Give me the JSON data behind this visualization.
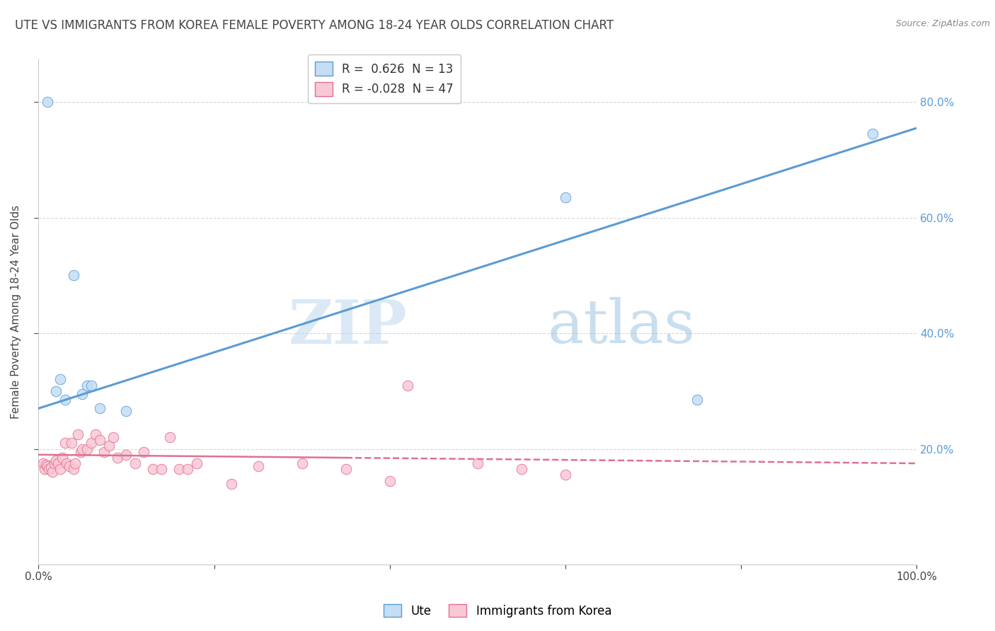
{
  "title": "UTE VS IMMIGRANTS FROM KOREA FEMALE POVERTY AMONG 18-24 YEAR OLDS CORRELATION CHART",
  "source": "Source: ZipAtlas.com",
  "ylabel": "Female Poverty Among 18-24 Year Olds",
  "xlabel": "",
  "xlim": [
    0,
    1.0
  ],
  "ylim": [
    0,
    0.875
  ],
  "xtick_labels": [
    "0.0%",
    "",
    "",
    "",
    "",
    "100.0%"
  ],
  "xtick_vals": [
    0,
    0.2,
    0.4,
    0.6,
    0.8,
    1.0
  ],
  "ytick_labels": [
    "20.0%",
    "40.0%",
    "60.0%",
    "80.0%"
  ],
  "ytick_vals": [
    0.2,
    0.4,
    0.6,
    0.8
  ],
  "legend1_label": "R =  0.626  N = 13",
  "legend2_label": "R = -0.028  N = 47",
  "legend1_fill": "#c5ddf5",
  "legend2_fill": "#f9c8d5",
  "line1_color": "#5b9bd5",
  "line2_color": "#e07090",
  "watermark_zip": "ZIP",
  "watermark_atlas": "atlas",
  "ute_x": [
    0.01,
    0.02,
    0.025,
    0.03,
    0.04,
    0.05,
    0.055,
    0.06,
    0.07,
    0.75,
    0.95,
    0.6,
    0.1
  ],
  "ute_y": [
    0.8,
    0.3,
    0.32,
    0.285,
    0.5,
    0.295,
    0.31,
    0.31,
    0.27,
    0.285,
    0.745,
    0.635,
    0.265
  ],
  "korea_x": [
    0.005,
    0.007,
    0.009,
    0.01,
    0.012,
    0.014,
    0.016,
    0.018,
    0.02,
    0.022,
    0.025,
    0.027,
    0.03,
    0.032,
    0.035,
    0.038,
    0.04,
    0.042,
    0.045,
    0.048,
    0.05,
    0.055,
    0.06,
    0.065,
    0.07,
    0.075,
    0.08,
    0.085,
    0.09,
    0.1,
    0.11,
    0.12,
    0.13,
    0.14,
    0.15,
    0.16,
    0.17,
    0.18,
    0.22,
    0.25,
    0.3,
    0.35,
    0.4,
    0.42,
    0.5,
    0.55,
    0.6
  ],
  "korea_y": [
    0.175,
    0.165,
    0.172,
    0.17,
    0.165,
    0.168,
    0.16,
    0.175,
    0.18,
    0.175,
    0.165,
    0.185,
    0.21,
    0.175,
    0.17,
    0.21,
    0.165,
    0.175,
    0.225,
    0.195,
    0.2,
    0.2,
    0.21,
    0.225,
    0.215,
    0.195,
    0.205,
    0.22,
    0.185,
    0.19,
    0.175,
    0.195,
    0.165,
    0.165,
    0.22,
    0.165,
    0.165,
    0.175,
    0.14,
    0.17,
    0.175,
    0.165,
    0.145,
    0.31,
    0.175,
    0.165,
    0.155
  ],
  "background_color": "#ffffff",
  "grid_color": "#d8d8d8",
  "line1_x_start": 0.0,
  "line1_y_start": 0.27,
  "line1_x_end": 1.0,
  "line1_y_end": 0.755,
  "line2_x_start": 0.0,
  "line2_y_start": 0.19,
  "line2_x_end": 1.0,
  "line2_y_end": 0.175
}
